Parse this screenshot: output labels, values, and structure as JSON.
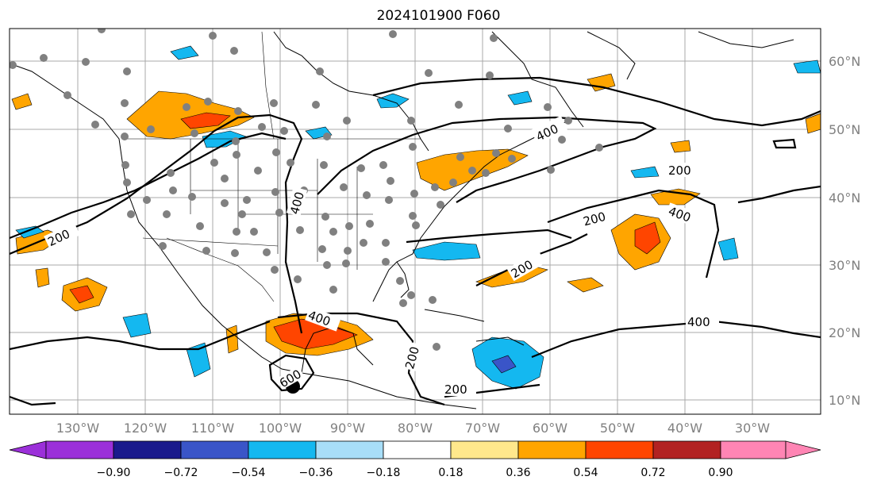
{
  "title": "2024101900 F060",
  "lat_labels": [
    "60°N",
    "50°N",
    "40°N",
    "30°N",
    "20°N",
    "10°N"
  ],
  "lon_labels": [
    "130°W",
    "120°W",
    "110°W",
    "100°W",
    "90°W",
    "80°W",
    "70°W",
    "60°W",
    "50°W",
    "40°W",
    "30°W"
  ],
  "contour_labels": [
    "400",
    "400",
    "200",
    "200",
    "200",
    "200",
    "400",
    "200",
    "400",
    "400",
    "200",
    "200",
    "600"
  ],
  "colorbar": {
    "ticks": [
      "−0.90",
      "−0.72",
      "−0.54",
      "−0.36",
      "−0.18",
      "0.18",
      "0.36",
      "0.54",
      "0.72",
      "0.90"
    ],
    "colors": [
      "#9b30d9",
      "#1a1a8c",
      "#3a55c8",
      "#14b8f0",
      "#a8def8",
      "#ffffff",
      "#ffe88c",
      "#ffa500",
      "#ff4500",
      "#b22222",
      "#ff85b4"
    ]
  },
  "colors": {
    "positive_fill": "#ffa500",
    "strong_positive_fill": "#ff4500",
    "negative_fill": "#14b8f0",
    "station_marker": "#808080"
  },
  "station_marker_icon": "gray-dot",
  "storm_marker_icon": "black-dot"
}
